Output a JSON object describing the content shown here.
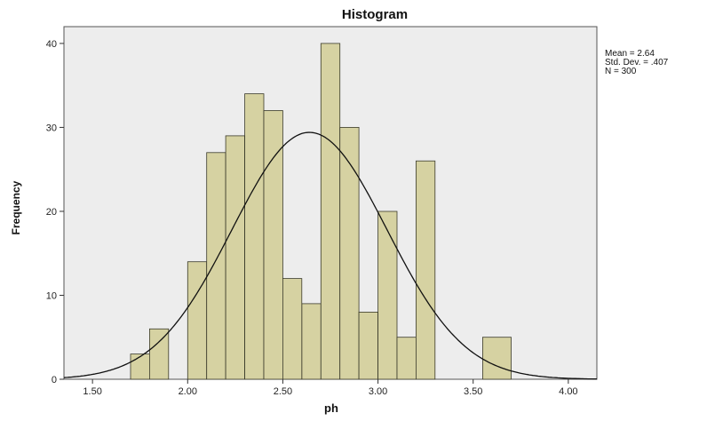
{
  "chart_data": {
    "type": "bar",
    "title": "Histogram",
    "xlabel": "ph",
    "ylabel": "Frequency",
    "xlim": [
      1.35,
      4.15
    ],
    "ylim": [
      0,
      42
    ],
    "x_ticks": [
      "1.50",
      "2.00",
      "2.50",
      "3.00",
      "3.50",
      "4.00"
    ],
    "y_ticks": [
      "0",
      "10",
      "20",
      "30",
      "40"
    ],
    "bin_width": 0.1,
    "bins": [
      {
        "x0": 1.7,
        "x1": 1.8,
        "value": 3
      },
      {
        "x0": 1.8,
        "x1": 1.9,
        "value": 6
      },
      {
        "x0": 2.0,
        "x1": 2.1,
        "value": 14
      },
      {
        "x0": 2.1,
        "x1": 2.2,
        "value": 27
      },
      {
        "x0": 2.2,
        "x1": 2.3,
        "value": 29
      },
      {
        "x0": 2.3,
        "x1": 2.4,
        "value": 34
      },
      {
        "x0": 2.4,
        "x1": 2.5,
        "value": 32
      },
      {
        "x0": 2.5,
        "x1": 2.6,
        "value": 12
      },
      {
        "x0": 2.6,
        "x1": 2.7,
        "value": 9
      },
      {
        "x0": 2.7,
        "x1": 2.8,
        "value": 40
      },
      {
        "x0": 2.8,
        "x1": 2.9,
        "value": 30
      },
      {
        "x0": 2.9,
        "x1": 3.0,
        "value": 8
      },
      {
        "x0": 3.0,
        "x1": 3.1,
        "value": 20
      },
      {
        "x0": 3.1,
        "x1": 3.2,
        "value": 5
      },
      {
        "x0": 3.2,
        "x1": 3.3,
        "value": 26
      },
      {
        "x0": 3.55,
        "x1": 3.7,
        "value": 5
      }
    ],
    "normal_curve": {
      "mean": 2.64,
      "std": 0.407,
      "n": 300
    },
    "grid": false,
    "colors": {
      "bar_fill": "#d6d2a2",
      "bar_edge": "#3a3a2a",
      "plot_bg": "#ededed",
      "curve": "#111111"
    }
  },
  "stats": {
    "mean": "Mean = 2.64",
    "std_dev": "Std. Dev. = .407",
    "n": "N = 300"
  }
}
